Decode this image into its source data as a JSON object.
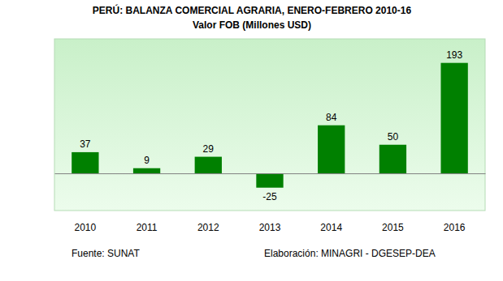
{
  "chart_data": {
    "type": "bar",
    "title": "PERÚ: BALANZA COMERCIAL AGRARIA, ENERO-FEBRERO 2010-16",
    "subtitle": "Valor FOB (Millones USD)",
    "categories": [
      "2010",
      "2011",
      "2012",
      "2013",
      "2014",
      "2015",
      "2016"
    ],
    "values": [
      37,
      9,
      29,
      -25,
      84,
      50,
      193
    ],
    "color": "#008000",
    "ylim": [
      -65,
      235
    ],
    "grid": false,
    "data_labels": true,
    "tick_labels": "x",
    "source": "Fuente: SUNAT",
    "credit": "Elaboración: MINAGRI - DGESEP-DEA"
  }
}
